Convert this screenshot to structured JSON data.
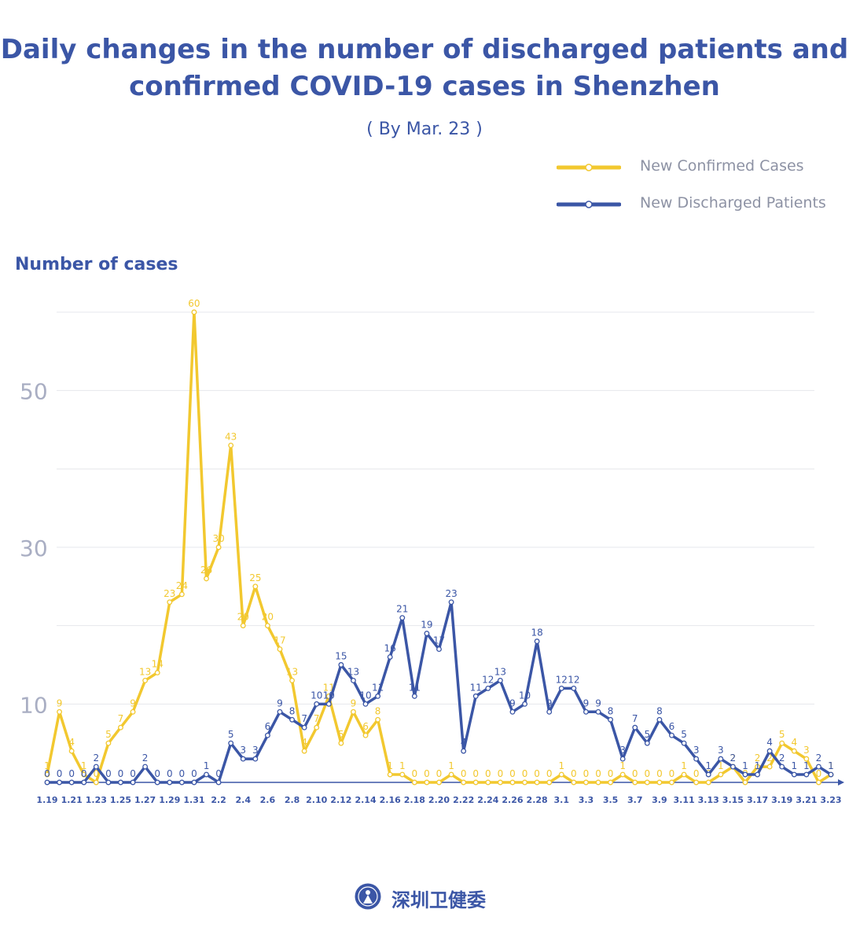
{
  "title_lines": [
    "Daily changes in the number of discharged patients and",
    "confirmed COVID-19 cases in Shenzhen"
  ],
  "subtitle": "( By Mar. 23 )",
  "legend": [
    {
      "label": "New Confirmed Cases",
      "color": "#f2c82f"
    },
    {
      "label": "New Discharged Patients",
      "color": "#3b56a6"
    }
  ],
  "footer_text": "深圳卫健委",
  "chart_data": {
    "type": "line",
    "title": "Daily changes in the number of discharged patients and confirmed COVID-19 cases in Shenzhen",
    "subtitle": "( By Mar. 23 )",
    "ylabel": "Number of cases",
    "xlabel": "",
    "ylim": [
      0,
      60
    ],
    "yticks": [
      10,
      30,
      50
    ],
    "grid": true,
    "legend_position": "top-right",
    "x": [
      "1.19",
      "1.20",
      "1.21",
      "1.22",
      "1.23",
      "1.24",
      "1.25",
      "1.26",
      "1.27",
      "1.28",
      "1.29",
      "1.30",
      "1.31",
      "2.1",
      "2.2",
      "2.3",
      "2.4",
      "2.5",
      "2.6",
      "2.7",
      "2.8",
      "2.9",
      "2.10",
      "2.11",
      "2.12",
      "2.13",
      "2.14",
      "2.15",
      "2.16",
      "2.17",
      "2.18",
      "2.19",
      "2.20",
      "2.21",
      "2.22",
      "2.23",
      "2.24",
      "2.25",
      "2.26",
      "2.27",
      "2.28",
      "2.29",
      "3.1",
      "3.2",
      "3.3",
      "3.4",
      "3.5",
      "3.6",
      "3.7",
      "3.8",
      "3.9",
      "3.10",
      "3.11",
      "3.12",
      "3.13",
      "3.14",
      "3.15",
      "3.16",
      "3.17",
      "3.18",
      "3.19",
      "3.20",
      "3.21",
      "3.22",
      "3.23"
    ],
    "x_tick_labels": [
      "1.19",
      "1.21",
      "1.23",
      "1.25",
      "1.27",
      "1.29",
      "1.31",
      "2.2",
      "2.4",
      "2.6",
      "2.8",
      "2.10",
      "2.12",
      "2.14",
      "2.16",
      "2.18",
      "2.20",
      "2.22",
      "2.24",
      "2.26",
      "2.28",
      "3.1",
      "3.3",
      "3.5",
      "3.7",
      "3.9",
      "3.11",
      "3.13",
      "3.15",
      "3.17",
      "3.19",
      "3.21",
      "3.23"
    ],
    "series": [
      {
        "name": "New Confirmed Cases",
        "color": "#f2c82f",
        "label_color": "#f2c82f",
        "values": [
          1,
          9,
          4,
          1,
          0,
          5,
          7,
          9,
          13,
          14,
          23,
          24,
          60,
          26,
          30,
          43,
          20,
          25,
          20,
          17,
          13,
          4,
          7,
          11,
          5,
          9,
          6,
          8,
          1,
          1,
          0,
          0,
          0,
          1,
          0,
          0,
          0,
          0,
          0,
          0,
          0,
          0,
          1,
          0,
          0,
          0,
          0,
          1,
          0,
          0,
          0,
          0,
          1,
          0,
          0,
          1,
          2,
          0,
          2,
          2,
          5,
          4,
          3,
          0,
          1
        ]
      },
      {
        "name": "New Discharged Patients",
        "color": "#3b56a6",
        "label_color": "#3b56a6",
        "values": [
          0,
          0,
          0,
          0,
          2,
          0,
          0,
          0,
          2,
          0,
          0,
          0,
          0,
          1,
          0,
          5,
          3,
          3,
          6,
          9,
          8,
          7,
          10,
          10,
          15,
          13,
          10,
          11,
          16,
          21,
          11,
          19,
          17,
          23,
          4,
          11,
          12,
          13,
          9,
          10,
          18,
          9,
          12,
          12,
          9,
          9,
          8,
          3,
          7,
          5,
          8,
          6,
          5,
          3,
          1,
          3,
          2,
          1,
          1,
          4,
          2,
          1,
          1,
          2,
          1
        ]
      }
    ]
  }
}
